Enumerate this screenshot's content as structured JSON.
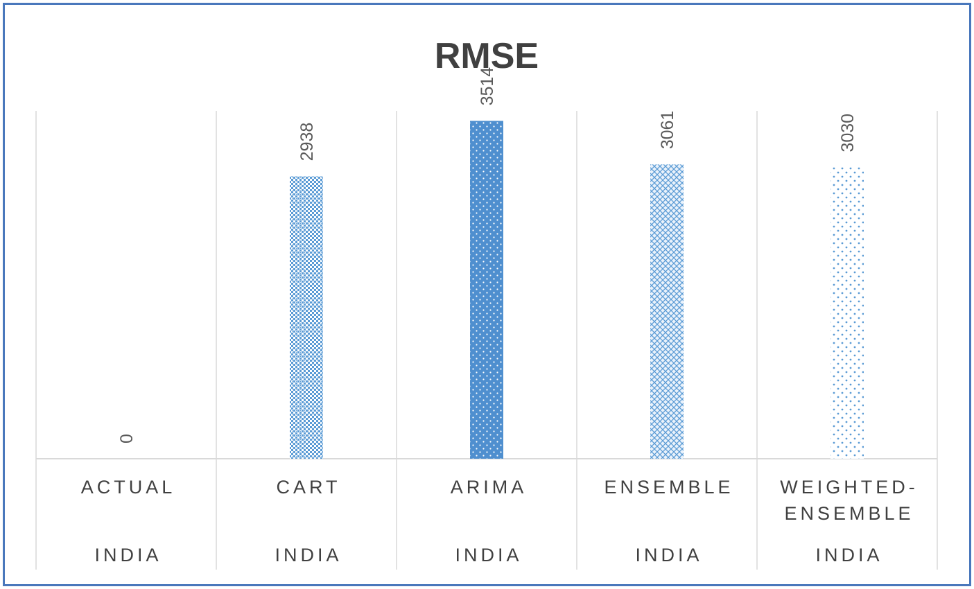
{
  "chart_data": {
    "type": "bar",
    "title": "RMSE",
    "categories": [
      [
        "ACTUAL"
      ],
      [
        "CART"
      ],
      [
        "ARIMA"
      ],
      [
        "ENSEMBLE"
      ],
      [
        "WEIGHTED-",
        "ENSEMBLE"
      ]
    ],
    "group_labels": [
      "INDIA",
      "INDIA",
      "INDIA",
      "INDIA",
      "INDIA"
    ],
    "values": [
      0,
      2938,
      3514,
      3061,
      3030
    ],
    "data_labels": [
      "0",
      "2938",
      "3514",
      "3061",
      "3030"
    ],
    "ylim": [
      0,
      4000
    ],
    "gridlines": false,
    "legend": "none",
    "colors": {
      "bar": "#5b9bd5",
      "bar_solid": "#4f8fcf",
      "frame": "#4a78bc",
      "divider": "#d9d9d9",
      "text": "#404040"
    },
    "patterns": [
      "none",
      "checker",
      "solid-dots",
      "crosshatch",
      "sparse-dots"
    ]
  }
}
